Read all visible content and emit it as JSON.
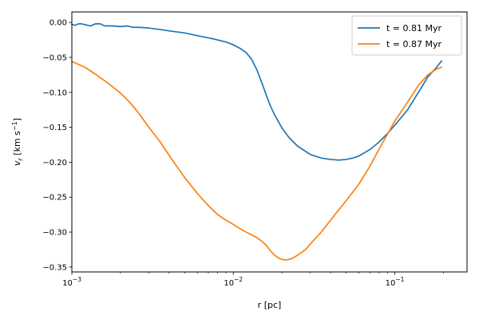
{
  "chart_data": {
    "type": "line",
    "xlabel": "r [pc]",
    "ylabel": "v_r [km s^-1]",
    "xscale": "log",
    "xlim": [
      0.001,
      0.28
    ],
    "ylim": [
      -0.357,
      0.015
    ],
    "grid": false,
    "legend_position": "top-right",
    "x_ticks": [
      {
        "value": 0.001,
        "base": "10",
        "exp": "−3"
      },
      {
        "value": 0.01,
        "base": "10",
        "exp": "−2"
      },
      {
        "value": 0.1,
        "base": "10",
        "exp": "−1"
      }
    ],
    "y_ticks": [
      {
        "value": 0.0,
        "label": "0.00"
      },
      {
        "value": -0.05,
        "label": "−0.05"
      },
      {
        "value": -0.1,
        "label": "−0.10"
      },
      {
        "value": -0.15,
        "label": "−0.15"
      },
      {
        "value": -0.2,
        "label": "−0.20"
      },
      {
        "value": -0.25,
        "label": "−0.25"
      },
      {
        "value": -0.3,
        "label": "−0.30"
      },
      {
        "value": -0.35,
        "label": "−0.35"
      }
    ],
    "series": [
      {
        "name": "t = 0.81 Myr",
        "color": "#1f77b4",
        "x": [
          0.001,
          0.00105,
          0.0011,
          0.00115,
          0.0012,
          0.0013,
          0.0014,
          0.0015,
          0.0016,
          0.0017,
          0.0018,
          0.002,
          0.0022,
          0.0024,
          0.0026,
          0.003,
          0.0035,
          0.004,
          0.005,
          0.006,
          0.007,
          0.008,
          0.009,
          0.01,
          0.011,
          0.012,
          0.013,
          0.014,
          0.015,
          0.016,
          0.017,
          0.018,
          0.02,
          0.022,
          0.025,
          0.03,
          0.035,
          0.04,
          0.045,
          0.05,
          0.055,
          0.06,
          0.07,
          0.08,
          0.09,
          0.1,
          0.12,
          0.14,
          0.16,
          0.18,
          0.195
        ],
        "y": [
          -0.003,
          -0.004,
          -0.002,
          -0.002,
          -0.003,
          -0.005,
          -0.002,
          -0.002,
          -0.005,
          -0.005,
          -0.005,
          -0.006,
          -0.005,
          -0.007,
          -0.007,
          -0.008,
          -0.01,
          -0.012,
          -0.015,
          -0.019,
          -0.022,
          -0.025,
          -0.028,
          -0.032,
          -0.037,
          -0.043,
          -0.053,
          -0.068,
          -0.086,
          -0.104,
          -0.12,
          -0.132,
          -0.151,
          -0.164,
          -0.177,
          -0.189,
          -0.194,
          -0.196,
          -0.197,
          -0.196,
          -0.194,
          -0.191,
          -0.182,
          -0.171,
          -0.159,
          -0.147,
          -0.125,
          -0.1,
          -0.078,
          -0.065,
          -0.055
        ]
      },
      {
        "name": "t = 0.87 Myr",
        "color": "#ff7f0e",
        "x": [
          0.001,
          0.0011,
          0.0012,
          0.0013,
          0.0014,
          0.0015,
          0.0017,
          0.002,
          0.0023,
          0.0026,
          0.003,
          0.0035,
          0.004,
          0.0045,
          0.005,
          0.0055,
          0.006,
          0.007,
          0.008,
          0.009,
          0.01,
          0.011,
          0.012,
          0.013,
          0.014,
          0.015,
          0.016,
          0.017,
          0.018,
          0.019,
          0.02,
          0.021,
          0.022,
          0.023,
          0.025,
          0.028,
          0.03,
          0.035,
          0.04,
          0.045,
          0.05,
          0.06,
          0.07,
          0.08,
          0.09,
          0.1,
          0.12,
          0.14,
          0.16,
          0.18,
          0.195
        ],
        "y": [
          -0.056,
          -0.06,
          -0.064,
          -0.069,
          -0.074,
          -0.079,
          -0.088,
          -0.101,
          -0.115,
          -0.13,
          -0.15,
          -0.17,
          -0.19,
          -0.207,
          -0.222,
          -0.234,
          -0.245,
          -0.262,
          -0.275,
          -0.283,
          -0.289,
          -0.295,
          -0.3,
          -0.304,
          -0.308,
          -0.313,
          -0.319,
          -0.327,
          -0.333,
          -0.337,
          -0.339,
          -0.34,
          -0.339,
          -0.338,
          -0.333,
          -0.325,
          -0.317,
          -0.3,
          -0.283,
          -0.268,
          -0.255,
          -0.231,
          -0.206,
          -0.181,
          -0.16,
          -0.141,
          -0.114,
          -0.09,
          -0.075,
          -0.067,
          -0.064
        ]
      }
    ]
  }
}
